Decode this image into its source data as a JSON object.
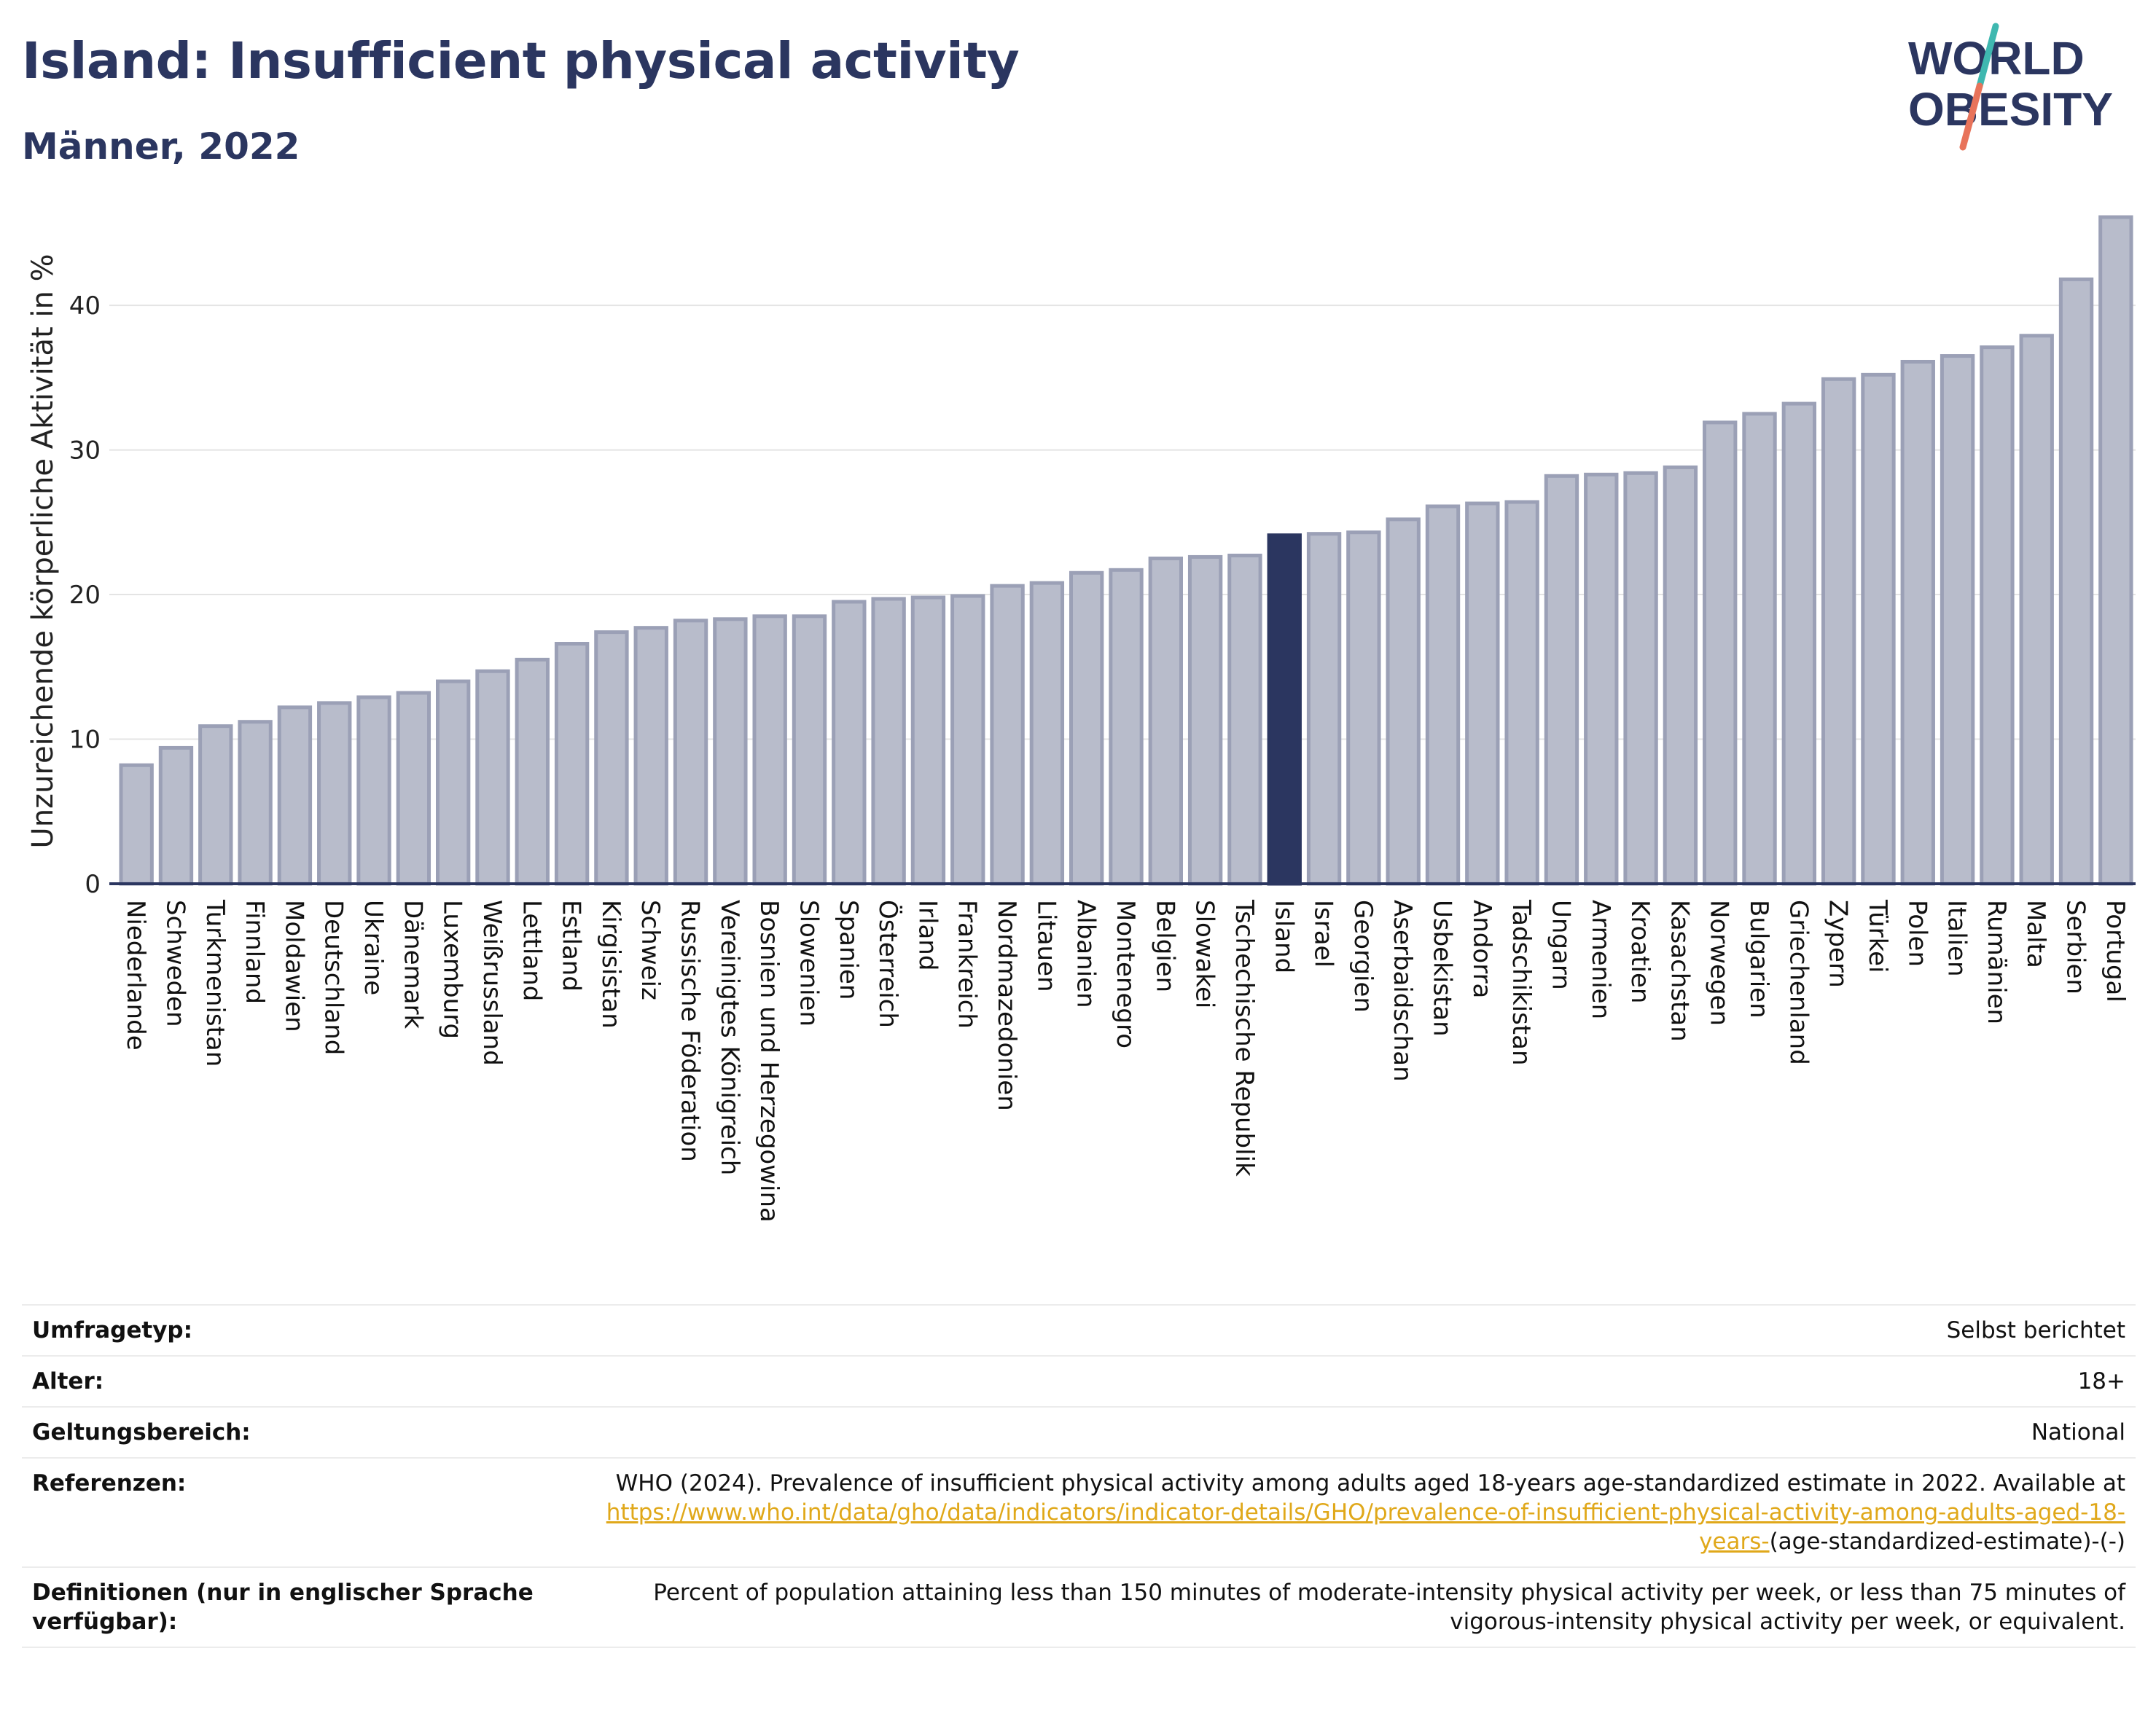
{
  "header": {
    "title": "Island: Insufficient physical activity",
    "subtitle": "Männer, 2022"
  },
  "logo": {
    "line1": "WORLD",
    "line2": "OBESITY",
    "colors": {
      "text": "#2b3660",
      "slash_top": "#3fb8b0",
      "slash_bottom": "#e8735a"
    }
  },
  "chart_data": {
    "type": "bar",
    "ylabel": "Unzureichende körperliche Aktivität in %",
    "xlabel": "",
    "ylim": [
      0,
      46
    ],
    "yticks": [
      0,
      10,
      20,
      30,
      40
    ],
    "grid": true,
    "highlight": "Island",
    "colors": {
      "bar": "#b8bccb",
      "bar_edge": "#9ba0b6",
      "highlight": "#2b3660",
      "grid": "#e4e4e4",
      "axis": "#2b3660"
    },
    "categories": [
      "Niederlande",
      "Schweden",
      "Turkmenistan",
      "Finnland",
      "Moldawien",
      "Deutschland",
      "Ukraine",
      "Dänemark",
      "Luxemburg",
      "Weißrussland",
      "Lettland",
      "Estland",
      "Kirgisistan",
      "Schweiz",
      "Russische Föderation",
      "Vereinigtes Königreich",
      "Bosnien und Herzegowina",
      "Slowenien",
      "Spanien",
      "Österreich",
      "Irland",
      "Frankreich",
      "Nordmazedonien",
      "Litauen",
      "Albanien",
      "Montenegro",
      "Belgien",
      "Slowakei",
      "Tschechische Republik",
      "Island",
      "Israel",
      "Georgien",
      "Aserbaidschan",
      "Usbekistan",
      "Andorra",
      "Tadschikistan",
      "Ungarn",
      "Armenien",
      "Kroatien",
      "Kasachstan",
      "Norwegen",
      "Bulgarien",
      "Griechenland",
      "Zypern",
      "Türkei",
      "Polen",
      "Italien",
      "Rumänien",
      "Malta",
      "Serbien",
      "Portugal"
    ],
    "values": [
      8.2,
      9.4,
      10.9,
      11.2,
      12.2,
      12.5,
      12.9,
      13.2,
      14.0,
      14.7,
      15.5,
      16.6,
      17.4,
      17.7,
      18.2,
      18.3,
      18.5,
      18.5,
      19.5,
      19.7,
      19.8,
      19.9,
      20.6,
      20.8,
      21.5,
      21.7,
      22.5,
      22.6,
      22.7,
      24.1,
      24.2,
      24.3,
      25.2,
      26.1,
      26.3,
      26.4,
      28.2,
      28.3,
      28.4,
      28.8,
      31.9,
      32.5,
      33.2,
      34.9,
      35.2,
      36.1,
      36.5,
      37.1,
      37.9,
      41.8,
      46.1
    ]
  },
  "info": {
    "survey_label": "Umfragetyp:",
    "survey_value": "Selbst berichtet",
    "age_label": "Alter:",
    "age_value": "18+",
    "scope_label": "Geltungsbereich:",
    "scope_value": "National",
    "ref_label": "Referenzen:",
    "ref_text": "WHO (2024). Prevalence of insufficient physical activity among adults aged 18-years age-standardized estimate in 2022. Available at",
    "ref_link": "https://www.who.int/data/gho/data/indicators/indicator-details/GHO/prevalence-of-insufficient-physical-activity-among-adults-aged-18-years-",
    "ref_tail": "(age-standardized-estimate)-(-)",
    "def_label": "Definitionen (nur in englischer Sprache verfügbar):",
    "def_value": "Percent of population attaining less than 150 minutes of moderate-intensity physical activity per week, or less than 75 minutes of vigorous-intensity physical activity per week, or equivalent."
  }
}
